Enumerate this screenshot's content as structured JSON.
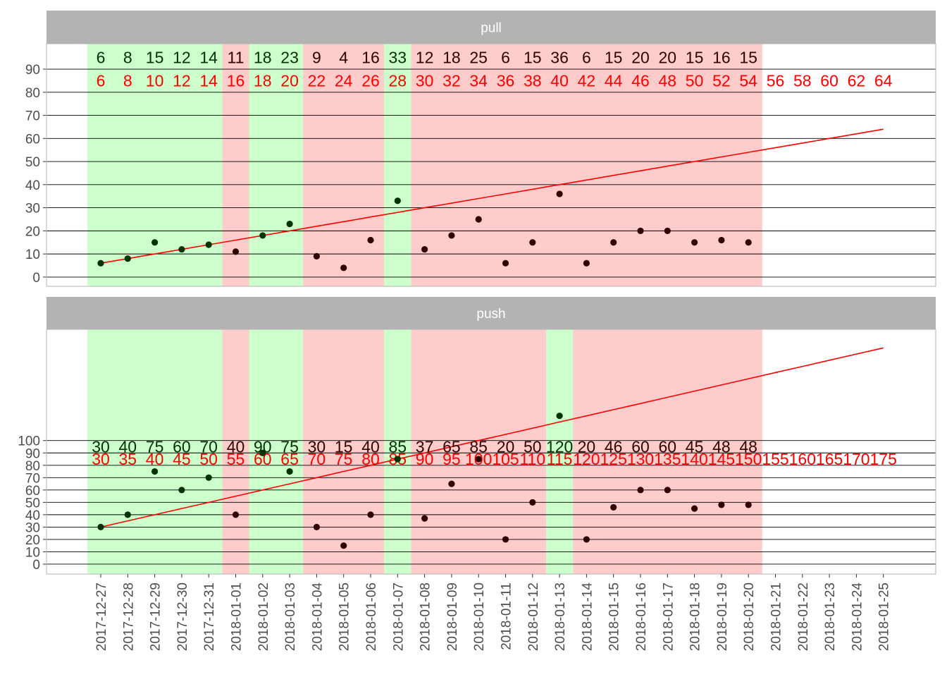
{
  "chart_data": {
    "type": "scatter",
    "x_dates": [
      "2017-12-27",
      "2017-12-28",
      "2017-12-29",
      "2017-12-30",
      "2017-12-31",
      "2018-01-01",
      "2018-01-02",
      "2018-01-03",
      "2018-01-04",
      "2018-01-05",
      "2018-01-06",
      "2018-01-07",
      "2018-01-08",
      "2018-01-09",
      "2018-01-10",
      "2018-01-11",
      "2018-01-12",
      "2018-01-13",
      "2018-01-14",
      "2018-01-15",
      "2018-01-16",
      "2018-01-17",
      "2018-01-18",
      "2018-01-19",
      "2018-01-20",
      "2018-01-21",
      "2018-01-22",
      "2018-01-23",
      "2018-01-24",
      "2018-01-25"
    ],
    "grid": true,
    "colors": {
      "strip": "#b3b3b3",
      "good": "#ccffcc",
      "bad": "#ffcccc",
      "point_good": "#003300",
      "point_bad": "#330000",
      "target": "#ff0000",
      "gridline": "#000000"
    },
    "panels": [
      {
        "name": "pull",
        "y_ticks": [
          0,
          10,
          20,
          30,
          40,
          50,
          60,
          70,
          80,
          90
        ],
        "ylim": [
          -4,
          101
        ],
        "actual": [
          6,
          8,
          15,
          12,
          14,
          11,
          18,
          23,
          9,
          4,
          16,
          33,
          12,
          18,
          25,
          6,
          15,
          36,
          6,
          15,
          20,
          20,
          15,
          16,
          15
        ],
        "target": [
          6,
          8,
          10,
          12,
          14,
          16,
          18,
          20,
          22,
          24,
          26,
          28,
          30,
          32,
          34,
          36,
          38,
          40,
          42,
          44,
          46,
          48,
          50,
          52,
          54,
          56,
          58,
          60,
          62,
          64
        ],
        "actual_label_y": 95,
        "target_label_y": 85
      },
      {
        "name": "push",
        "y_ticks": [
          0,
          10,
          20,
          30,
          40,
          50,
          60,
          70,
          80,
          90,
          100
        ],
        "ylim": [
          -8,
          190
        ],
        "actual": [
          30,
          40,
          75,
          60,
          70,
          40,
          90,
          75,
          30,
          15,
          40,
          85,
          37,
          65,
          85,
          20,
          50,
          120,
          20,
          46,
          60,
          60,
          45,
          48,
          48
        ],
        "target": [
          30,
          35,
          40,
          45,
          50,
          55,
          60,
          65,
          70,
          75,
          80,
          85,
          90,
          95,
          100,
          105,
          110,
          115,
          120,
          125,
          130,
          135,
          140,
          145,
          150,
          155,
          160,
          165,
          170,
          175
        ],
        "actual_label_y": 95,
        "target_label_y": 85
      }
    ]
  }
}
